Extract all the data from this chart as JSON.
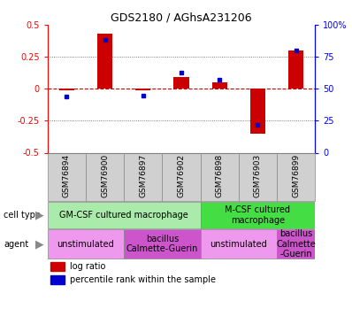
{
  "title": "GDS2180 / AGhsA231206",
  "samples": [
    "GSM76894",
    "GSM76900",
    "GSM76897",
    "GSM76902",
    "GSM76898",
    "GSM76903",
    "GSM76899"
  ],
  "log_ratio": [
    -0.01,
    0.43,
    -0.01,
    0.09,
    0.05,
    -0.35,
    0.3
  ],
  "percentile_rank": [
    44,
    88,
    45,
    63,
    57,
    22,
    80
  ],
  "ylim_left": [
    -0.5,
    0.5
  ],
  "ylim_right": [
    0,
    100
  ],
  "left_ticks": [
    -0.5,
    -0.25,
    0,
    0.25,
    0.5
  ],
  "right_ticks": [
    0,
    25,
    50,
    75,
    100
  ],
  "right_tick_labels": [
    "0",
    "25",
    "50",
    "75",
    "100%"
  ],
  "bar_color": "#cc0000",
  "dot_color": "#0000cc",
  "zero_line_color": "#cc0000",
  "dotted_line_color": "#555555",
  "sample_box_color": "#d0d0d0",
  "cell_type_groups": [
    {
      "label": "GM-CSF cultured macrophage",
      "start": 0,
      "end": 4,
      "color": "#aaeaaa"
    },
    {
      "label": "M-CSF cultured\nmacrophage",
      "start": 4,
      "end": 7,
      "color": "#44dd44"
    }
  ],
  "agent_groups": [
    {
      "label": "unstimulated",
      "start": 0,
      "end": 2,
      "color": "#ee99ee"
    },
    {
      "label": "bacillus\nCalmette-Guerin",
      "start": 2,
      "end": 4,
      "color": "#cc55cc"
    },
    {
      "label": "unstimulated",
      "start": 4,
      "end": 6,
      "color": "#ee99ee"
    },
    {
      "label": "bacillus\nCalmette\n-Guerin",
      "start": 6,
      "end": 7,
      "color": "#cc55cc"
    }
  ],
  "tick_fontsize": 7,
  "sample_fontsize": 6.5,
  "annot_fontsize": 7,
  "legend_fontsize": 7,
  "title_fontsize": 9
}
